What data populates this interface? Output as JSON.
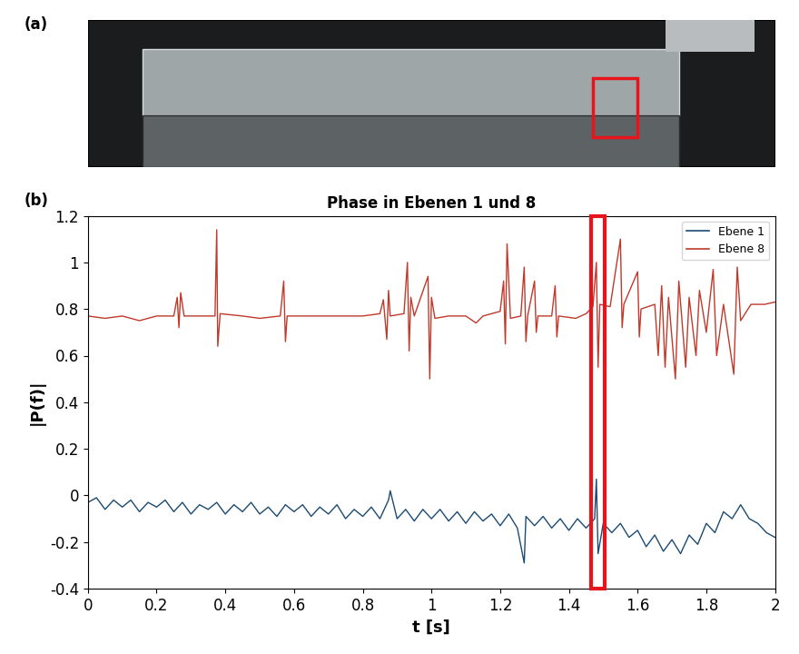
{
  "chart_data": {
    "type": "line",
    "title": "Phase in Ebenen 1 und 8",
    "panel_label": "(b)",
    "x_label": "t [s]",
    "y_label": "|P(f)|",
    "xlim": [
      0,
      2
    ],
    "xticks": [
      0,
      0.2,
      0.4,
      0.6,
      0.8,
      1,
      1.2,
      1.4,
      1.6,
      1.8,
      2
    ],
    "ylim": [
      -0.4,
      1.2
    ],
    "yticks": [
      -0.4,
      -0.2,
      0,
      0.2,
      0.4,
      0.6,
      0.8,
      1,
      1.2
    ],
    "legend": "upper right",
    "grid": false,
    "highlight_x": [
      1.465,
      1.505
    ],
    "series": [
      {
        "name": "Ebene 1",
        "color": "#1b4a72",
        "x": [
          0,
          0.025,
          0.05,
          0.075,
          0.1,
          0.125,
          0.15,
          0.175,
          0.2,
          0.225,
          0.25,
          0.275,
          0.3,
          0.325,
          0.35,
          0.375,
          0.4,
          0.425,
          0.45,
          0.475,
          0.5,
          0.525,
          0.55,
          0.575,
          0.6,
          0.625,
          0.65,
          0.675,
          0.7,
          0.725,
          0.75,
          0.775,
          0.8,
          0.825,
          0.85,
          0.875,
          0.88,
          0.9,
          0.925,
          0.95,
          0.975,
          1.0,
          1.025,
          1.05,
          1.075,
          1.1,
          1.125,
          1.15,
          1.175,
          1.2,
          1.225,
          1.25,
          1.27,
          1.275,
          1.3,
          1.325,
          1.35,
          1.375,
          1.4,
          1.425,
          1.45,
          1.475,
          1.48,
          1.485,
          1.5,
          1.525,
          1.55,
          1.575,
          1.6,
          1.625,
          1.65,
          1.675,
          1.7,
          1.725,
          1.75,
          1.775,
          1.8,
          1.825,
          1.85,
          1.875,
          1.9,
          1.925,
          1.95,
          1.975,
          2.0
        ],
        "values": [
          -0.03,
          -0.01,
          -0.06,
          -0.02,
          -0.05,
          -0.02,
          -0.07,
          -0.03,
          -0.05,
          -0.02,
          -0.07,
          -0.03,
          -0.08,
          -0.04,
          -0.06,
          -0.03,
          -0.08,
          -0.04,
          -0.07,
          -0.03,
          -0.08,
          -0.05,
          -0.09,
          -0.04,
          -0.07,
          -0.04,
          -0.09,
          -0.05,
          -0.08,
          -0.04,
          -0.1,
          -0.06,
          -0.09,
          -0.05,
          -0.1,
          -0.02,
          0.02,
          -0.1,
          -0.06,
          -0.11,
          -0.06,
          -0.1,
          -0.06,
          -0.11,
          -0.07,
          -0.12,
          -0.07,
          -0.11,
          -0.08,
          -0.13,
          -0.08,
          -0.14,
          -0.29,
          -0.09,
          -0.13,
          -0.09,
          -0.14,
          -0.1,
          -0.15,
          -0.1,
          -0.14,
          -0.1,
          0.07,
          -0.25,
          -0.12,
          -0.16,
          -0.12,
          -0.18,
          -0.15,
          -0.22,
          -0.17,
          -0.24,
          -0.19,
          -0.25,
          -0.17,
          -0.21,
          -0.12,
          -0.16,
          -0.07,
          -0.1,
          -0.04,
          -0.1,
          -0.12,
          -0.16,
          -0.18
        ]
      },
      {
        "name": "Ebene 8",
        "color": "#c0392b",
        "x": [
          0,
          0.05,
          0.1,
          0.15,
          0.2,
          0.25,
          0.26,
          0.265,
          0.27,
          0.28,
          0.33,
          0.37,
          0.375,
          0.378,
          0.385,
          0.45,
          0.5,
          0.56,
          0.57,
          0.575,
          0.58,
          0.65,
          0.7,
          0.75,
          0.8,
          0.85,
          0.86,
          0.87,
          0.875,
          0.88,
          0.92,
          0.93,
          0.935,
          0.94,
          0.95,
          0.99,
          0.995,
          1.0,
          1.01,
          1.05,
          1.1,
          1.13,
          1.15,
          1.2,
          1.21,
          1.215,
          1.22,
          1.23,
          1.26,
          1.27,
          1.275,
          1.28,
          1.3,
          1.305,
          1.31,
          1.35,
          1.36,
          1.365,
          1.37,
          1.42,
          1.45,
          1.47,
          1.48,
          1.485,
          1.49,
          1.52,
          1.55,
          1.555,
          1.56,
          1.6,
          1.605,
          1.61,
          1.65,
          1.66,
          1.67,
          1.68,
          1.69,
          1.71,
          1.72,
          1.74,
          1.75,
          1.77,
          1.78,
          1.8,
          1.82,
          1.83,
          1.85,
          1.88,
          1.89,
          1.9,
          1.93,
          1.97,
          2.0
        ],
        "values": [
          0.77,
          0.76,
          0.77,
          0.75,
          0.77,
          0.77,
          0.85,
          0.72,
          0.87,
          0.77,
          0.77,
          0.77,
          1.14,
          0.64,
          0.78,
          0.77,
          0.76,
          0.77,
          0.92,
          0.66,
          0.77,
          0.77,
          0.77,
          0.77,
          0.77,
          0.78,
          0.84,
          0.67,
          0.88,
          0.77,
          0.78,
          1.0,
          0.62,
          0.85,
          0.77,
          0.94,
          0.5,
          0.85,
          0.76,
          0.77,
          0.77,
          0.74,
          0.77,
          0.79,
          0.92,
          0.65,
          1.08,
          0.76,
          0.77,
          0.98,
          0.66,
          0.77,
          0.92,
          0.7,
          0.77,
          0.77,
          0.9,
          0.68,
          0.77,
          0.76,
          0.78,
          0.81,
          1.0,
          0.55,
          0.82,
          0.81,
          1.1,
          0.72,
          0.82,
          0.96,
          0.68,
          0.8,
          0.82,
          0.6,
          0.9,
          0.55,
          0.85,
          0.5,
          0.92,
          0.55,
          0.85,
          0.6,
          0.88,
          0.7,
          0.97,
          0.6,
          0.82,
          0.52,
          0.98,
          0.75,
          0.82,
          0.82,
          0.83
        ]
      }
    ]
  },
  "photo": {
    "panel_label": "(a)"
  }
}
